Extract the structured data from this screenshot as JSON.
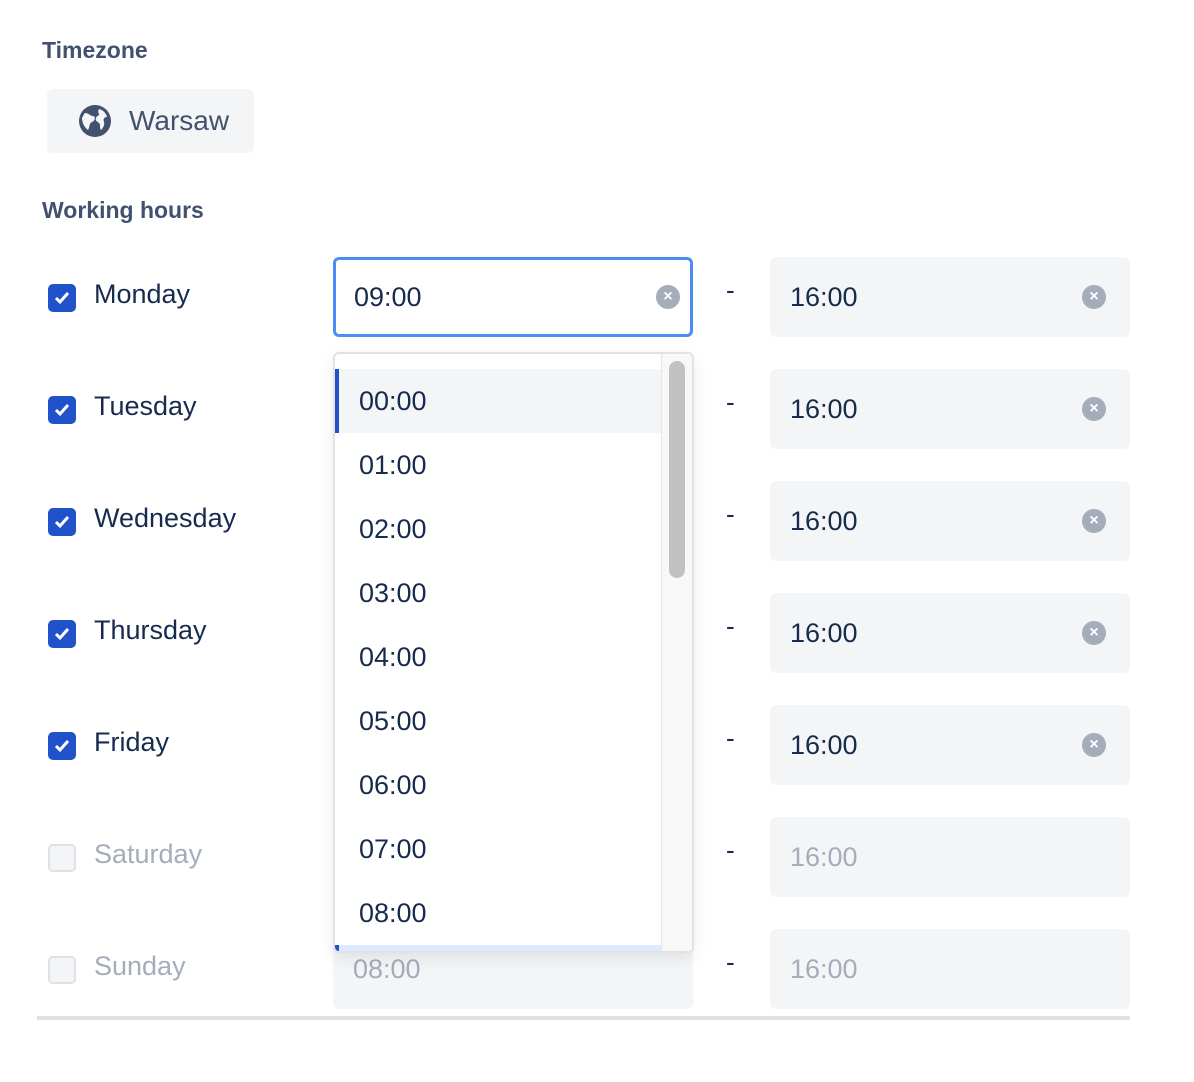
{
  "timezone": {
    "label": "Timezone",
    "value": "Warsaw",
    "icon": "globe-icon"
  },
  "working_hours": {
    "label": "Working hours",
    "days": [
      {
        "day": "Monday",
        "enabled": true,
        "start": "09:00",
        "end": "16:00"
      },
      {
        "day": "Tuesday",
        "enabled": true,
        "start": "",
        "end": "16:00"
      },
      {
        "day": "Wednesday",
        "enabled": true,
        "start": "",
        "end": "16:00"
      },
      {
        "day": "Thursday",
        "enabled": true,
        "start": "",
        "end": "16:00"
      },
      {
        "day": "Friday",
        "enabled": true,
        "start": "",
        "end": "16:00"
      },
      {
        "day": "Saturday",
        "enabled": false,
        "start": "",
        "end": "16:00"
      },
      {
        "day": "Sunday",
        "enabled": false,
        "start": "08:00",
        "end": "16:00"
      }
    ],
    "separator": "-"
  },
  "dropdown": {
    "options": [
      "00:00",
      "01:00",
      "02:00",
      "03:00",
      "04:00",
      "05:00",
      "06:00",
      "07:00",
      "08:00"
    ],
    "highlighted": "00:00"
  },
  "colors": {
    "accent": "#2152cb",
    "focus": "#4c8df5"
  }
}
